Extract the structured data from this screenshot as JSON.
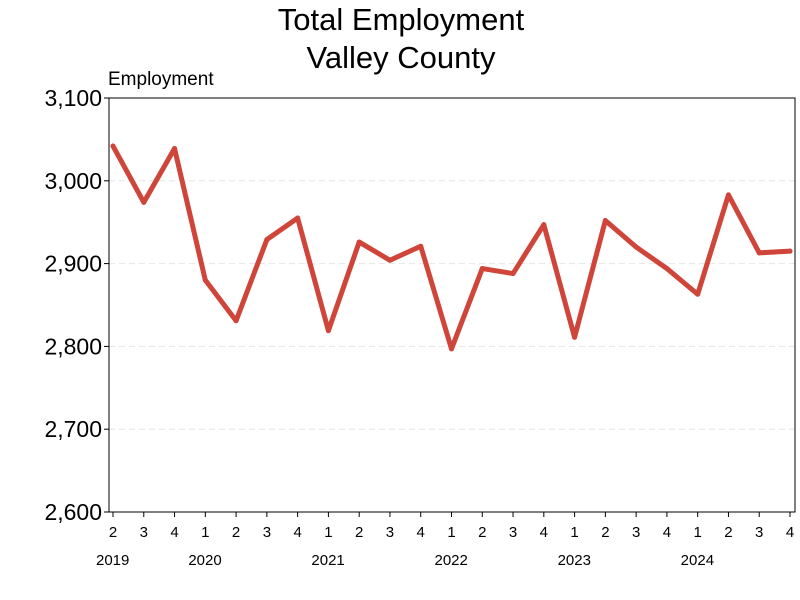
{
  "chart_data": {
    "type": "line",
    "title": [
      "Total Employment",
      "Valley County"
    ],
    "ylabel": "Employment",
    "xlabel": "",
    "ylim": [
      2600,
      3100
    ],
    "yticks": [
      2600,
      2700,
      2800,
      2900,
      3000,
      3100
    ],
    "ytick_labels": [
      "2,600",
      "2,700",
      "2,800",
      "2,900",
      "3,000",
      "3,100"
    ],
    "grid": "horizontal-dashed",
    "x_quarters": [
      "2",
      "3",
      "4",
      "1",
      "2",
      "3",
      "4",
      "1",
      "2",
      "3",
      "4",
      "1",
      "2",
      "3",
      "4",
      "1",
      "2",
      "3",
      "4",
      "1",
      "2",
      "3",
      "4"
    ],
    "x_years": [
      {
        "label": "2019",
        "start_index": 0
      },
      {
        "label": "2020",
        "start_index": 3
      },
      {
        "label": "2021",
        "start_index": 7
      },
      {
        "label": "2022",
        "start_index": 11
      },
      {
        "label": "2023",
        "start_index": 15
      },
      {
        "label": "2024",
        "start_index": 19
      }
    ],
    "series": [
      {
        "color": "#d0453a",
        "values": [
          3042,
          2974,
          3039,
          2880,
          2831,
          2929,
          2955,
          2819,
          2926,
          2904,
          2921,
          2797,
          2894,
          2888,
          2947,
          2811,
          2952,
          2920,
          2894,
          2863,
          2983,
          2913,
          2915
        ]
      }
    ]
  }
}
